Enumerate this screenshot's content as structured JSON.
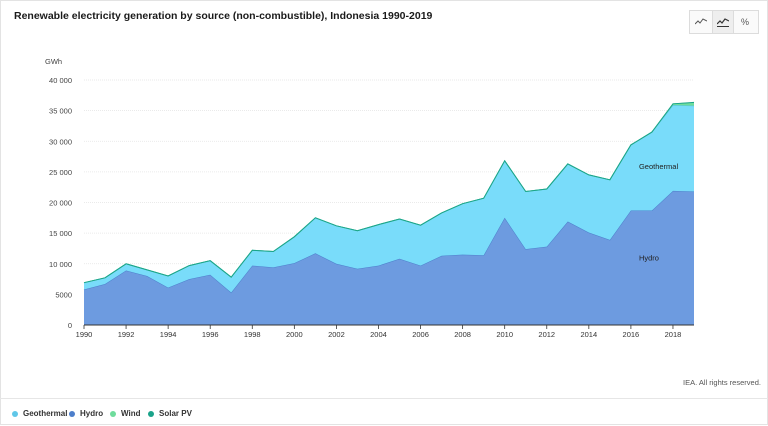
{
  "title": "Renewable electricity generation by source (non-combustible), Indonesia 1990-2019",
  "toolbar": {
    "line_icon": "line-chart-icon",
    "area_icon": "area-chart-icon",
    "percent_label": "%"
  },
  "credit": "IEA. All rights reserved.",
  "legend": [
    {
      "label": "Geothermal",
      "color": "#60c7e8"
    },
    {
      "label": "Hydro",
      "color": "#4d7fcb"
    },
    {
      "label": "Wind",
      "color": "#6fdc9c"
    },
    {
      "label": "Solar PV",
      "color": "#1aa38a"
    }
  ],
  "chart_data": {
    "type": "area",
    "stacked": true,
    "ylabel": "GWh",
    "ylim": [
      0,
      40000
    ],
    "yticks": [
      "0",
      "5000",
      "10 000",
      "15 000",
      "20 000",
      "25 000",
      "30 000",
      "35 000",
      "40 000"
    ],
    "xticks": [
      "1990",
      "1992",
      "1994",
      "1996",
      "1998",
      "2000",
      "2002",
      "2004",
      "2006",
      "2008",
      "2010",
      "2012",
      "2014",
      "2016",
      "2018"
    ],
    "x": [
      1990,
      1991,
      1992,
      1993,
      1994,
      1995,
      1996,
      1997,
      1998,
      1999,
      2000,
      2001,
      2002,
      2003,
      2004,
      2005,
      2006,
      2007,
      2008,
      2009,
      2010,
      2011,
      2012,
      2013,
      2014,
      2015,
      2016,
      2017,
      2018,
      2019
    ],
    "series": [
      {
        "name": "Hydro",
        "color": "#6d9be0",
        "stroke": "#4d7fcb",
        "values": [
          5800,
          6700,
          8900,
          8000,
          6100,
          7500,
          8200,
          5300,
          9700,
          9400,
          10100,
          11700,
          10000,
          9200,
          9700,
          10800,
          9700,
          11300,
          11500,
          11400,
          17500,
          12400,
          12800,
          16900,
          15100,
          13900,
          18700,
          18700,
          21900,
          21800
        ]
      },
      {
        "name": "Geothermal",
        "color": "#79dcfa",
        "stroke": "#4fc2ea",
        "values": [
          1100,
          1000,
          1100,
          1000,
          1900,
          2200,
          2300,
          2500,
          2500,
          2600,
          4300,
          5800,
          6200,
          6200,
          6700,
          6500,
          6600,
          7000,
          8300,
          9300,
          9300,
          9400,
          9400,
          9400,
          9400,
          9800,
          10700,
          12800,
          14000,
          14000
        ]
      },
      {
        "name": "Wind",
        "color": "#6fdc9c",
        "stroke": "#6fdc9c",
        "values": [
          0,
          0,
          0,
          0,
          0,
          0,
          0,
          0,
          0,
          0,
          0,
          0,
          0,
          0,
          0,
          0,
          0,
          0,
          0,
          0,
          0,
          0,
          0,
          0,
          0,
          0,
          0,
          0,
          190,
          480
        ]
      },
      {
        "name": "Solar PV",
        "color": "#1aa38a",
        "stroke": "#1aa38a",
        "values": [
          0,
          0,
          0,
          0,
          0,
          0,
          0,
          0,
          0,
          0,
          0,
          0,
          0,
          0,
          0,
          0,
          0,
          0,
          0,
          0,
          0,
          0,
          0,
          0,
          0,
          0,
          0,
          0,
          20,
          60
        ]
      }
    ],
    "annotations": [
      {
        "text": "Geothermal",
        "x": 2018,
        "y": 26000
      },
      {
        "text": "Hydro",
        "x": 2018,
        "y": 11000
      }
    ]
  }
}
